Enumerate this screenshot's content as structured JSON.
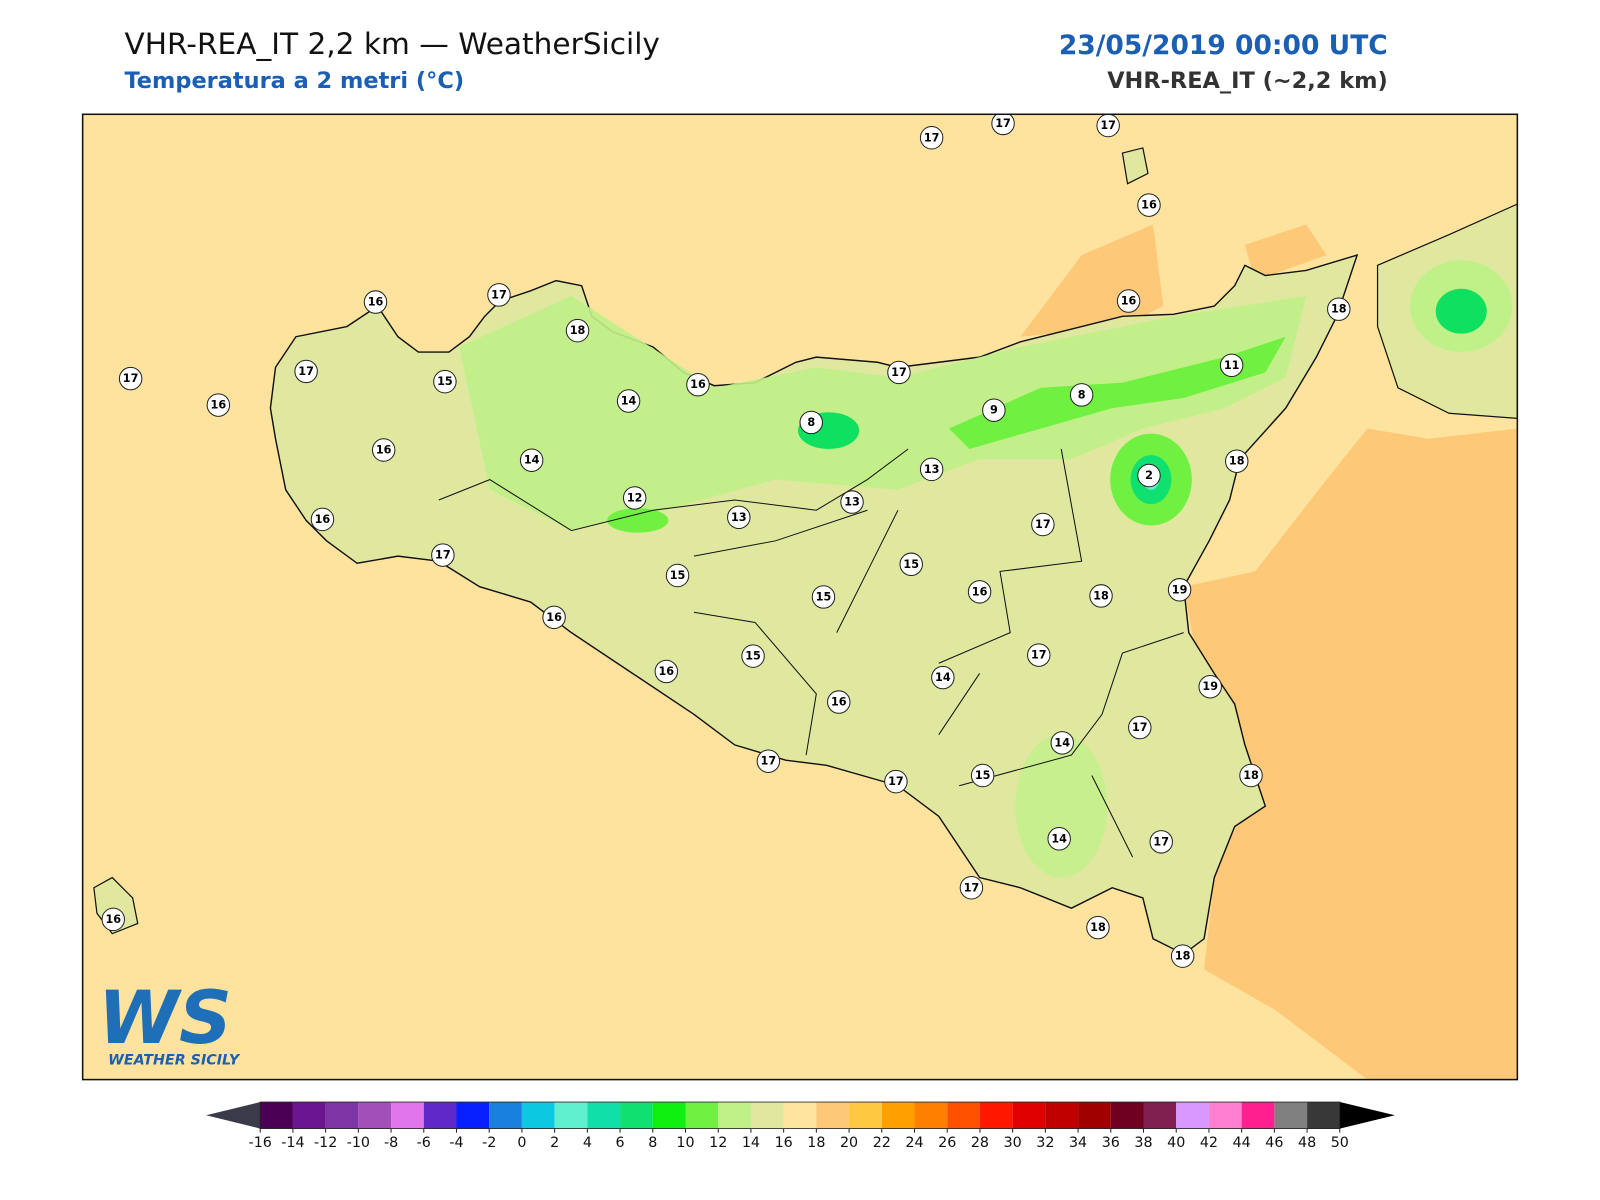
{
  "header": {
    "title": "VHR-REA_IT 2,2 km — WeatherSicily",
    "subtitle": "Temperatura a 2 metri (°C)",
    "date": "23/05/2019 00:00 UTC",
    "model": "VHR-REA_IT (~2,2 km)"
  },
  "logo": {
    "mark": "WS",
    "name": "WEATHER SICILY"
  },
  "stations": [
    17,
    17,
    17,
    16,
    16,
    17,
    18,
    16,
    18,
    17,
    17,
    15,
    16,
    17,
    11,
    16,
    14,
    8,
    9,
    8,
    16,
    14,
    13,
    2,
    18,
    12,
    13,
    13,
    16,
    17,
    17,
    15,
    15,
    15,
    16,
    18,
    19,
    16,
    15,
    17,
    16,
    14,
    19,
    16,
    17,
    14,
    17,
    15,
    18,
    17,
    17,
    14,
    17,
    16,
    18,
    18
  ],
  "colorbar": {
    "ticks": [
      -16,
      -14,
      -12,
      -10,
      -8,
      -6,
      -4,
      -2,
      0,
      2,
      4,
      6,
      8,
      10,
      12,
      14,
      16,
      18,
      20,
      22,
      24,
      26,
      28,
      30,
      32,
      34,
      36,
      38,
      40,
      42,
      44,
      46,
      48,
      50
    ],
    "colors": [
      "#4b0055",
      "#6b1590",
      "#7d35a5",
      "#a050b8",
      "#e075ec",
      "#6028c8",
      "#0820ff",
      "#1a80e0",
      "#0cc8e0",
      "#60f0d0",
      "#10e0a8",
      "#10e070",
      "#10f010",
      "#70f040",
      "#c0f088",
      "#e0e8a0",
      "#ffe4a0",
      "#fdc878",
      "#ffc840",
      "#ffa000",
      "#ff8000",
      "#ff5000",
      "#ff1800",
      "#e00000",
      "#c00000",
      "#a00000",
      "#700020",
      "#802050",
      "#d898ff",
      "#ff80d0",
      "#ff2090",
      "#808080",
      "#383838"
    ],
    "under_color": "#3a3a48",
    "over_color": "#000000"
  }
}
